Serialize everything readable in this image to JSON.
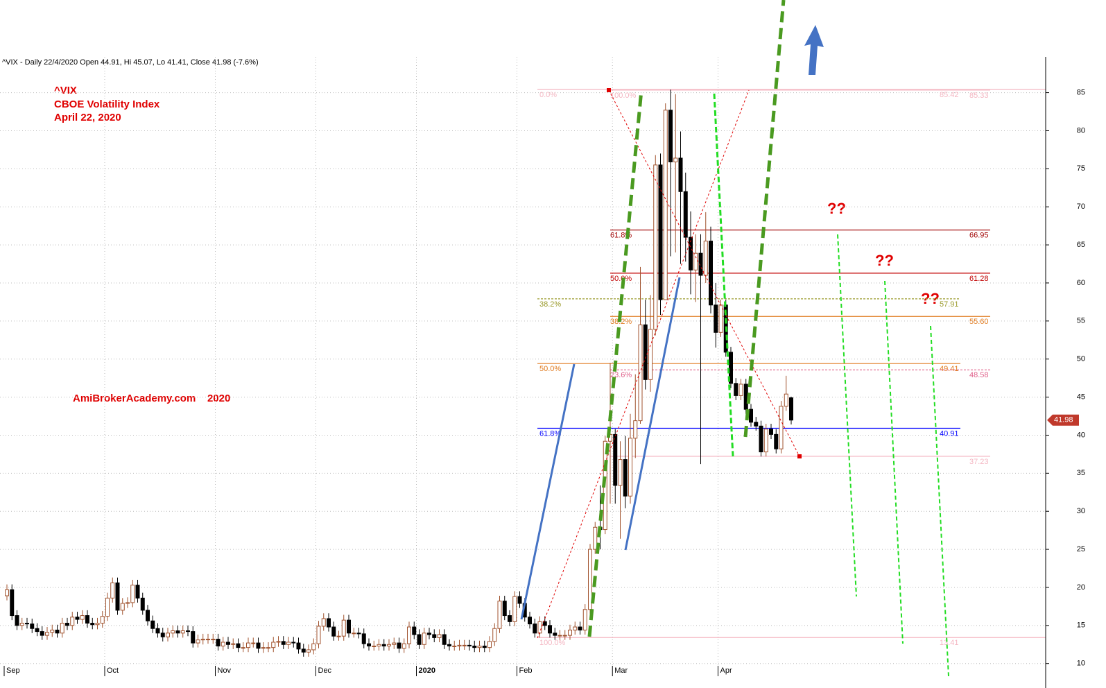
{
  "chart_data": {
    "type": "candlestick",
    "header": "^VIX - Daily 22/4/2020 Open 44.91, Hi 45.07, Lo 41.41, Close 41.98 (-7.6%)",
    "title_lines": [
      "^VIX",
      "CBOE Volatility Index",
      "April 22, 2020"
    ],
    "watermark": "AmiBrokerAcademy.com    2020",
    "question_marks": [
      "??",
      "??",
      "??"
    ],
    "up_color": "#a0522d",
    "down_color": "#000000",
    "grid": true,
    "ylim": [
      9.7,
      89.7
    ],
    "yticks": [
      10,
      15,
      20,
      25,
      30,
      35,
      40,
      45,
      50,
      55,
      60,
      65,
      70,
      75,
      80,
      85
    ],
    "categories": [
      "Sep",
      null,
      null,
      null,
      null,
      null,
      null,
      null,
      null,
      null,
      null,
      null,
      null,
      null,
      null,
      null,
      null,
      null,
      null,
      null,
      "Oct",
      null,
      null,
      null,
      null,
      null,
      null,
      null,
      null,
      null,
      null,
      null,
      null,
      null,
      null,
      null,
      null,
      null,
      null,
      null,
      null,
      null,
      "Nov",
      null,
      null,
      null,
      null,
      null,
      null,
      null,
      null,
      null,
      null,
      null,
      null,
      null,
      null,
      null,
      null,
      null,
      null,
      null,
      "Dec",
      null,
      null,
      null,
      null,
      null,
      null,
      null,
      null,
      null,
      null,
      null,
      null,
      null,
      null,
      null,
      null,
      null,
      null,
      null,
      "2020",
      null,
      null,
      null,
      null,
      null,
      null,
      null,
      null,
      null,
      null,
      null,
      null,
      null,
      null,
      null,
      null,
      null,
      null,
      null,
      "Feb",
      null,
      null,
      null,
      null,
      null,
      null,
      null,
      null,
      null,
      null,
      null,
      null,
      null,
      null,
      null,
      null,
      null,
      null,
      "Mar",
      null,
      null,
      null,
      null,
      null,
      null,
      null,
      null,
      null,
      null,
      null,
      null,
      null,
      null,
      null,
      null,
      null,
      null,
      null,
      null,
      "Apr",
      null,
      null,
      null,
      null,
      null,
      null,
      null,
      null,
      null,
      null,
      null,
      null,
      null,
      null
    ],
    "open": [
      18.9,
      19.7,
      16.3,
      15.0,
      15.3,
      15.2,
      14.6,
      14.2,
      13.7,
      14.1,
      14.4,
      14.0,
      15.3,
      15.0,
      16.1,
      15.8,
      16.3,
      15.3,
      15.1,
      15.3,
      16.2,
      18.6,
      20.6,
      17.0,
      17.9,
      18.0,
      20.3,
      18.6,
      17.0,
      15.6,
      14.6,
      14.0,
      13.5,
      14.0,
      14.3,
      14.0,
      14.3,
      14.2,
      12.7,
      13.1,
      13.2,
      13.2,
      13.2,
      12.3,
      12.8,
      12.5,
      12.6,
      12.1,
      12.1,
      12.7,
      12.7,
      12.0,
      12.1,
      12.1,
      12.8,
      12.9,
      12.5,
      12.8,
      12.7,
      11.9,
      11.5,
      11.8,
      12.6,
      14.9,
      15.9,
      14.8,
      13.6,
      13.6,
      15.7,
      14.0,
      14.0,
      13.9,
      12.6,
      12.3,
      12.3,
      12.5,
      12.3,
      12.5,
      12.7,
      12.0,
      12.6,
      14.8,
      13.8,
      12.5,
      14.0,
      13.8,
      13.4,
      13.8,
      12.5,
      12.3,
      12.3,
      12.4,
      12.4,
      12.3,
      12.1,
      12.3,
      12.1,
      12.9,
      14.6,
      18.2,
      16.3,
      15.5,
      18.8,
      17.9,
      16.1,
      15.2,
      14.0,
      15.5,
      15.0,
      14.0,
      13.7,
      13.7,
      13.7,
      14.4,
      14.8,
      14.4,
      17.1,
      25.0,
      27.9,
      27.6,
      39.2,
      40.1,
      33.4,
      36.8,
      32.0,
      39.6,
      41.9,
      54.5,
      47.3,
      53.9,
      75.5,
      57.8,
      82.7,
      75.9,
      76.4,
      72.0,
      66.0,
      61.7,
      63.9,
      61.0,
      65.5,
      57.1,
      53.5,
      57.1,
      50.9,
      46.8,
      45.2,
      46.7,
      43.4,
      41.7,
      41.2,
      37.8,
      40.8,
      40.1,
      38.2,
      43.8,
      44.91
    ],
    "high": [
      20.4,
      20.4,
      17.0,
      16.0,
      16.0,
      15.9,
      15.3,
      14.9,
      14.8,
      15.1,
      15.1,
      16.0,
      16.0,
      16.8,
      16.8,
      17.0,
      17.0,
      16.0,
      16.0,
      16.9,
      19.3,
      21.3,
      21.3,
      18.6,
      18.7,
      21.0,
      21.0,
      19.3,
      17.7,
      16.3,
      15.3,
      14.7,
      14.7,
      15.0,
      15.0,
      15.0,
      15.0,
      14.9,
      13.8,
      13.9,
      13.9,
      13.9,
      13.9,
      13.5,
      13.5,
      13.3,
      13.3,
      12.8,
      13.4,
      13.4,
      13.4,
      12.8,
      12.8,
      13.5,
      13.6,
      13.6,
      13.5,
      13.5,
      13.4,
      12.6,
      12.5,
      13.3,
      15.6,
      16.6,
      16.6,
      15.5,
      14.3,
      16.4,
      16.4,
      14.7,
      14.7,
      14.6,
      13.3,
      13.0,
      13.2,
      13.2,
      13.2,
      13.4,
      13.4,
      13.3,
      15.5,
      15.5,
      14.5,
      14.7,
      14.7,
      14.5,
      14.5,
      14.5,
      13.2,
      13.0,
      13.1,
      13.1,
      13.1,
      13.0,
      13.0,
      13.0,
      13.6,
      15.3,
      18.9,
      18.9,
      17.0,
      19.5,
      19.5,
      18.6,
      16.8,
      15.9,
      16.2,
      16.2,
      15.7,
      14.7,
      14.4,
      14.4,
      15.1,
      15.5,
      15.5,
      17.8,
      25.7,
      28.6,
      33.4,
      39.9,
      49.5,
      40.8,
      39.2,
      39.9,
      42.8,
      48.0,
      62.1,
      57.8,
      58.4,
      76.8,
      77.0,
      83.6,
      85.4,
      84.8,
      79.9,
      74.5,
      69.4,
      66.4,
      66.4,
      69.3,
      67.4,
      60.0,
      57.8,
      57.8,
      51.6,
      47.5,
      47.4,
      47.4,
      44.1,
      42.4,
      41.9,
      41.5,
      41.5,
      40.8,
      44.5,
      47.8,
      45.07
    ],
    "low": [
      18.3,
      15.7,
      14.4,
      14.4,
      14.6,
      14.0,
      13.6,
      13.1,
      13.1,
      13.5,
      13.4,
      13.4,
      14.4,
      14.4,
      15.2,
      15.2,
      14.7,
      14.5,
      14.5,
      14.7,
      15.6,
      18.0,
      16.4,
      16.4,
      17.3,
      17.4,
      18.0,
      16.4,
      15.0,
      14.0,
      13.4,
      12.9,
      12.9,
      13.4,
      13.4,
      13.4,
      13.6,
      12.1,
      12.1,
      12.5,
      12.6,
      12.6,
      11.7,
      11.7,
      11.9,
      11.9,
      11.5,
      11.5,
      11.5,
      12.1,
      11.4,
      11.4,
      11.5,
      11.5,
      12.2,
      11.9,
      11.9,
      12.1,
      11.3,
      10.9,
      10.9,
      11.2,
      12.0,
      14.3,
      14.2,
      13.0,
      13.0,
      13.0,
      13.4,
      13.4,
      13.3,
      12.0,
      11.7,
      11.7,
      11.7,
      11.7,
      11.7,
      11.9,
      11.4,
      11.4,
      12.0,
      13.2,
      11.9,
      11.9,
      13.2,
      12.8,
      12.8,
      11.9,
      11.7,
      11.7,
      11.7,
      11.8,
      11.7,
      11.5,
      11.5,
      11.5,
      11.5,
      12.3,
      14.0,
      15.7,
      14.9,
      14.9,
      17.3,
      15.5,
      14.6,
      13.4,
      13.4,
      14.4,
      13.4,
      13.1,
      13.1,
      13.1,
      13.1,
      13.8,
      13.8,
      13.8,
      16.5,
      24.4,
      25.0,
      27.0,
      31.0,
      31.0,
      26.4,
      30.4,
      31.0,
      37.0,
      41.5,
      46.0,
      45.7,
      53.1,
      55.8,
      57.8,
      63.5,
      64.0,
      62.5,
      62.8,
      58.5,
      57.5,
      36.2,
      60.0,
      56.0,
      51.5,
      52.9,
      50.3,
      46.2,
      44.6,
      44.6,
      42.8,
      41.1,
      40.6,
      37.2,
      37.2,
      39.5,
      37.6,
      37.6,
      43.2,
      41.41
    ],
    "close": [
      19.7,
      16.3,
      15.0,
      15.3,
      15.2,
      14.6,
      14.2,
      13.7,
      14.1,
      14.4,
      14.0,
      15.3,
      15.0,
      16.1,
      15.8,
      16.3,
      15.3,
      15.1,
      15.3,
      16.2,
      18.6,
      20.6,
      17.0,
      17.9,
      18.0,
      20.3,
      18.6,
      17.0,
      15.6,
      14.6,
      14.0,
      13.5,
      14.0,
      14.3,
      14.0,
      14.3,
      14.2,
      12.7,
      13.1,
      13.2,
      13.2,
      13.2,
      12.3,
      12.8,
      12.5,
      12.6,
      12.1,
      12.1,
      12.7,
      12.7,
      12.0,
      12.1,
      12.1,
      12.8,
      12.9,
      12.5,
      12.8,
      12.7,
      11.9,
      11.5,
      11.8,
      12.6,
      14.9,
      15.9,
      14.8,
      13.6,
      13.6,
      15.7,
      14.0,
      14.0,
      13.9,
      12.6,
      12.3,
      12.3,
      12.5,
      12.3,
      12.5,
      12.7,
      12.0,
      12.6,
      14.8,
      13.8,
      12.5,
      14.0,
      13.8,
      13.4,
      13.8,
      12.5,
      12.3,
      12.3,
      12.4,
      12.4,
      12.3,
      12.1,
      12.3,
      12.1,
      12.9,
      14.6,
      18.2,
      16.3,
      15.5,
      18.8,
      17.9,
      16.1,
      15.2,
      14.0,
      15.5,
      15.0,
      14.0,
      13.7,
      13.7,
      13.7,
      14.4,
      14.8,
      14.4,
      17.1,
      25.0,
      27.9,
      27.6,
      39.2,
      40.1,
      33.4,
      36.8,
      32.0,
      39.6,
      41.9,
      54.5,
      47.3,
      53.9,
      75.5,
      57.8,
      82.7,
      75.9,
      76.4,
      72.0,
      66.0,
      61.7,
      63.9,
      61.0,
      65.5,
      57.1,
      53.5,
      57.1,
      50.9,
      46.8,
      45.2,
      46.7,
      43.4,
      41.7,
      41.2,
      37.8,
      40.8,
      40.1,
      38.2,
      43.8,
      45.4,
      41.98
    ],
    "fib_sets": [
      {
        "levels": [
          {
            "value": 85.42,
            "pct": "0.0%",
            "color": "#f4b6c2"
          },
          {
            "value": 57.91,
            "pct": "38.2%",
            "color": "#9a9a2a",
            "dashed": true
          },
          {
            "value": 49.41,
            "pct": "50.0%",
            "color": "#e07b20"
          },
          {
            "value": 40.91,
            "pct": "61.8%",
            "color": "#0000ff"
          },
          {
            "value": 13.41,
            "pct": "100.0%",
            "color": "#f4b6c2"
          }
        ]
      },
      {
        "levels": [
          {
            "value": 85.33,
            "pct": "100.0%",
            "color": "#f4b6c2"
          },
          {
            "value": 66.95,
            "pct": "61.8%",
            "color": "#a00000"
          },
          {
            "value": 61.28,
            "pct": "50.0%",
            "color": "#c00000"
          },
          {
            "value": 55.6,
            "label": "55.60",
            "pct": "38.2%",
            "color": "#e07b20"
          },
          {
            "value": 48.58,
            "pct": "23.6%",
            "color": "#e0608a",
            "dashed": true
          },
          {
            "value": 37.23,
            "color": "#f4b6c2"
          }
        ]
      }
    ]
  }
}
